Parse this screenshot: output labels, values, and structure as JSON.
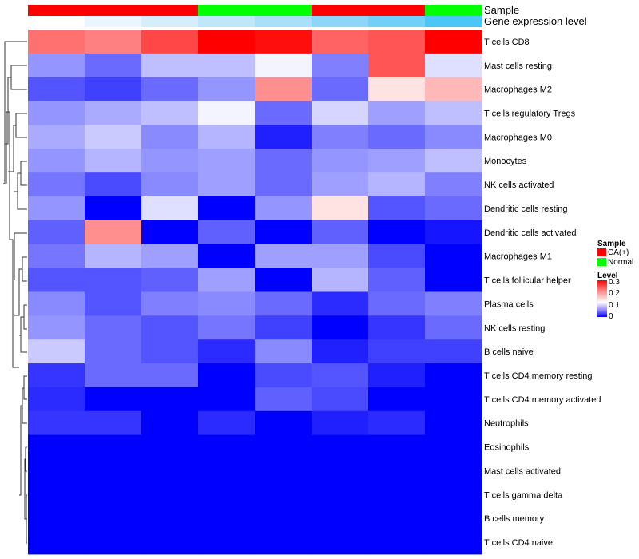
{
  "chart_data": {
    "type": "heatmap",
    "title": "",
    "color_scale": {
      "min": 0,
      "mid": 0.12,
      "max": 0.3,
      "low_color": "#0000ff",
      "mid_color": "#ffffff",
      "high_color": "#ff0000"
    },
    "annotation_labels": [
      "Sample",
      "Gene expression level"
    ],
    "sample_groups": [
      "CA(+)",
      "CA(+)",
      "CA(+)",
      "Normal",
      "Normal",
      "CA(+)",
      "CA(+)",
      "Normal"
    ],
    "gene_expression_colors": [
      "#ffffff",
      "#eaf6fd",
      "#d6edfa",
      "#c0e6fa",
      "#a9dff9",
      "#8dd6f8",
      "#72d0f6",
      "#4cc6f7"
    ],
    "rows": [
      "T cells CD8",
      "Mast cells resting",
      "Macrophages M2",
      "T cells regulatory  Tregs",
      "Macrophages M0",
      "Monocytes",
      "NK cells activated",
      "Dendritic cells resting",
      "Dendritic cells activated",
      "Macrophages M1",
      "T cells follicular helper",
      "Plasma cells",
      "NK cells resting",
      "B cells naive",
      "T cells CD4 memory resting",
      "T cells CD4 memory activated",
      "Neutrophils",
      "Eosinophils",
      "Mast cells activated",
      "T cells gamma delta",
      "B cells memory",
      "T cells CD4 naive"
    ],
    "values": [
      [
        0.22,
        0.21,
        0.25,
        0.3,
        0.29,
        0.23,
        0.24,
        0.3
      ],
      [
        0.07,
        0.05,
        0.09,
        0.09,
        0.115,
        0.06,
        0.24,
        0.105
      ],
      [
        0.04,
        0.03,
        0.05,
        0.07,
        0.2,
        0.05,
        0.14,
        0.17
      ],
      [
        0.07,
        0.08,
        0.09,
        0.115,
        0.05,
        0.1,
        0.075,
        0.09
      ],
      [
        0.08,
        0.095,
        0.065,
        0.085,
        0.015,
        0.06,
        0.05,
        0.065
      ],
      [
        0.07,
        0.085,
        0.07,
        0.075,
        0.05,
        0.07,
        0.075,
        0.09
      ],
      [
        0.055,
        0.035,
        0.065,
        0.075,
        0.05,
        0.075,
        0.085,
        0.06
      ],
      [
        0.07,
        0.0,
        0.105,
        0.0,
        0.07,
        0.14,
        0.04,
        0.05
      ],
      [
        0.045,
        0.2,
        0.0,
        0.045,
        0.0,
        0.045,
        0.0,
        0.01
      ],
      [
        0.055,
        0.085,
        0.075,
        0.0,
        0.075,
        0.075,
        0.035,
        0.0
      ],
      [
        0.04,
        0.04,
        0.045,
        0.075,
        0.0,
        0.085,
        0.045,
        0.0
      ],
      [
        0.065,
        0.04,
        0.06,
        0.065,
        0.05,
        0.02,
        0.05,
        0.06
      ],
      [
        0.07,
        0.05,
        0.04,
        0.055,
        0.03,
        0.0,
        0.025,
        0.05
      ],
      [
        0.095,
        0.05,
        0.04,
        0.02,
        0.065,
        0.015,
        0.03,
        0.03
      ],
      [
        0.025,
        0.05,
        0.05,
        0.0,
        0.035,
        0.04,
        0.015,
        0.0
      ],
      [
        0.02,
        0.0,
        0.0,
        0.0,
        0.045,
        0.035,
        0.0,
        0.0
      ],
      [
        0.025,
        0.025,
        0.0,
        0.02,
        0.0,
        0.015,
        0.02,
        0.0
      ],
      [
        0,
        0,
        0,
        0,
        0,
        0,
        0,
        0
      ],
      [
        0,
        0,
        0,
        0,
        0,
        0,
        0,
        0
      ],
      [
        0,
        0,
        0,
        0,
        0,
        0,
        0,
        0
      ],
      [
        0,
        0,
        0,
        0,
        0,
        0,
        0,
        0
      ],
      [
        0,
        0,
        0,
        0,
        0,
        0,
        0,
        0
      ]
    ],
    "legend": {
      "sample_title": "Sample",
      "sample_entries": [
        {
          "label": "CA(+)",
          "color": "#ff0000"
        },
        {
          "label": "Normal",
          "color": "#00ff00"
        }
      ],
      "level_title": "Level",
      "level_ticks": [
        "0.3",
        "0.2",
        "0.1",
        "0"
      ]
    },
    "legend_placement": "right"
  }
}
